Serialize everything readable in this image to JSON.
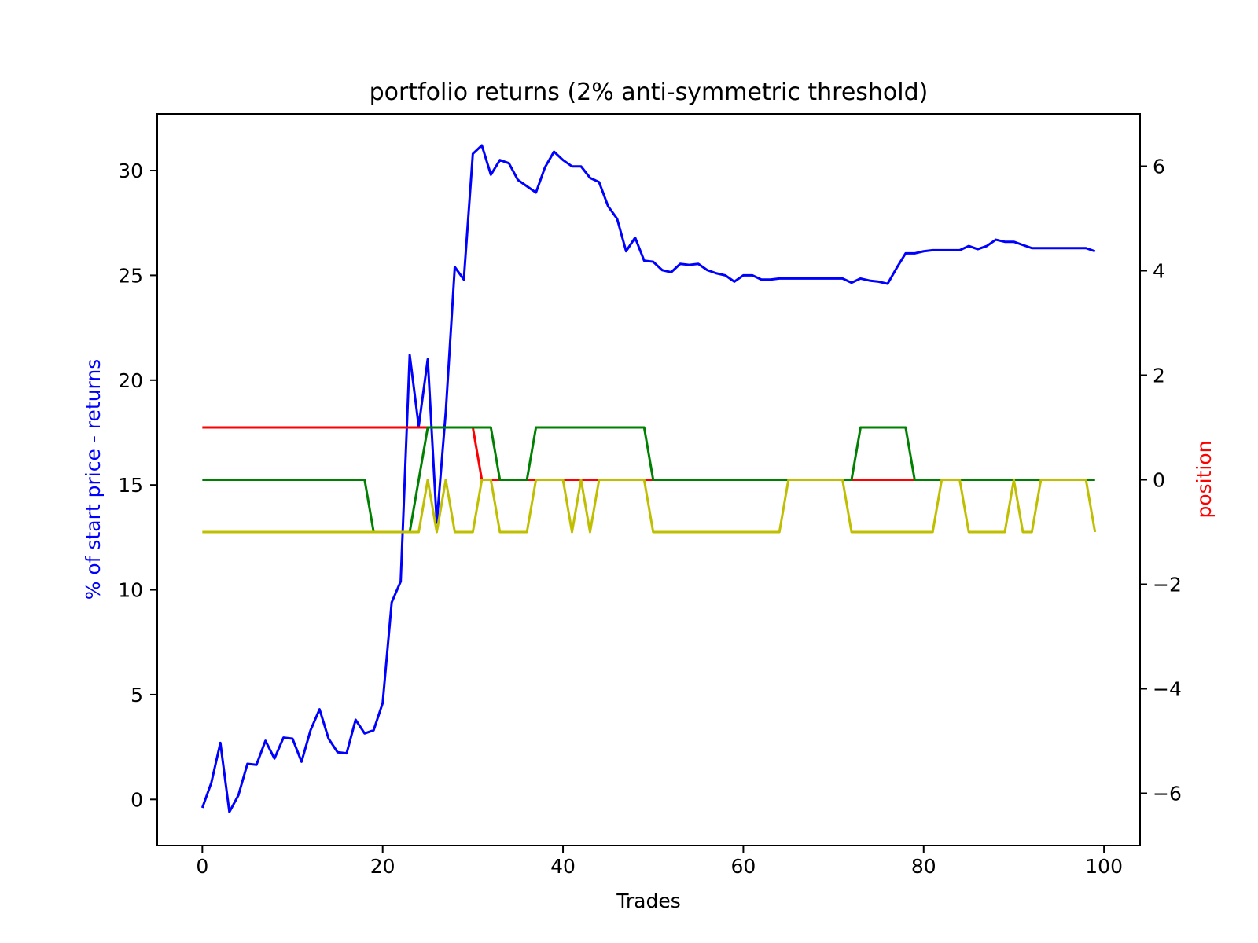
{
  "chart_data": {
    "type": "line",
    "title": "portfolio returns (2% anti-symmetric threshold)",
    "xlabel": "Trades",
    "ylabel_left": "% of start price - returns",
    "ylabel_right": "position",
    "ylabel_left_color": "#0000ff",
    "ylabel_right_color": "#ff0000",
    "xlim": [
      -5,
      104
    ],
    "ylim_left": [
      -2.2,
      32.7
    ],
    "ylim_right": [
      -7,
      7
    ],
    "x_ticks": [
      0,
      20,
      40,
      60,
      80,
      100
    ],
    "x_tick_labels": [
      "0",
      "20",
      "40",
      "60",
      "80",
      "100"
    ],
    "y_left_ticks": [
      0,
      5,
      10,
      15,
      20,
      25,
      30
    ],
    "y_left_tick_labels": [
      "0",
      "5",
      "10",
      "15",
      "20",
      "25",
      "30"
    ],
    "y_right_ticks": [
      -6,
      -4,
      -2,
      0,
      2,
      4,
      6
    ],
    "y_right_tick_labels": [
      "−6",
      "−4",
      "−2",
      "0",
      "2",
      "4",
      "6"
    ],
    "grid": false,
    "legend": "none",
    "series": [
      {
        "axis": "left",
        "color": "#0000ff",
        "values": [
          -0.4,
          0.8,
          2.7,
          -0.6,
          0.2,
          1.7,
          1.65,
          2.8,
          1.95,
          2.95,
          2.9,
          1.8,
          3.3,
          4.3,
          2.9,
          2.25,
          2.2,
          3.8,
          3.15,
          3.3,
          4.6,
          9.4,
          10.4,
          21.2,
          17.8,
          21.0,
          13.2,
          18.5,
          25.4,
          24.8,
          30.8,
          31.2,
          29.8,
          30.5,
          30.35,
          29.55,
          29.25,
          28.95,
          30.15,
          30.9,
          30.5,
          30.2,
          30.2,
          29.65,
          29.45,
          28.3,
          27.7,
          26.15,
          26.8,
          25.7,
          25.65,
          25.25,
          25.15,
          25.55,
          25.5,
          25.55,
          25.25,
          25.1,
          25.0,
          24.7,
          25.0,
          25.0,
          24.8,
          24.8,
          24.85,
          24.85,
          24.85,
          24.85,
          24.85,
          24.85,
          24.85,
          24.85,
          24.65,
          24.85,
          24.75,
          24.7,
          24.6,
          25.35,
          26.05,
          26.05,
          26.15,
          26.2,
          26.2,
          26.2,
          26.2,
          26.4,
          26.25,
          26.4,
          26.7,
          26.6,
          26.6,
          26.45,
          26.3,
          26.3,
          26.3,
          26.3,
          26.3,
          26.3,
          26.3,
          26.15
        ]
      },
      {
        "axis": "right",
        "color": "#ff0000",
        "values": [
          1,
          1,
          1,
          1,
          1,
          1,
          1,
          1,
          1,
          1,
          1,
          1,
          1,
          1,
          1,
          1,
          1,
          1,
          1,
          1,
          1,
          1,
          1,
          1,
          1,
          1,
          1,
          1,
          1,
          1,
          1,
          0,
          0,
          0,
          0,
          0,
          0,
          0,
          0,
          0,
          0,
          0,
          0,
          0,
          0,
          0,
          0,
          0,
          0,
          0,
          0,
          0,
          0,
          0,
          0,
          0,
          0,
          0,
          0,
          0,
          0,
          0,
          0,
          0,
          0,
          0,
          0,
          0,
          0,
          0,
          0,
          0,
          0,
          0,
          0,
          0,
          0,
          0,
          0,
          0,
          0,
          0,
          0,
          0,
          0,
          0,
          0,
          0,
          0,
          0,
          0,
          0,
          0,
          0,
          0,
          0,
          0,
          0,
          0,
          0
        ]
      },
      {
        "axis": "right",
        "color": "#008000",
        "values": [
          0,
          0,
          0,
          0,
          0,
          0,
          0,
          0,
          0,
          0,
          0,
          0,
          0,
          0,
          0,
          0,
          0,
          0,
          0,
          -1,
          -1,
          -1,
          -1,
          -1,
          0,
          1,
          1,
          1,
          1,
          1,
          1,
          1,
          1,
          0,
          0,
          0,
          0,
          1,
          1,
          1,
          1,
          1,
          1,
          1,
          1,
          1,
          1,
          1,
          1,
          1,
          0,
          0,
          0,
          0,
          0,
          0,
          0,
          0,
          0,
          0,
          0,
          0,
          0,
          0,
          0,
          0,
          0,
          0,
          0,
          0,
          0,
          0,
          0,
          1,
          1,
          1,
          1,
          1,
          1,
          0,
          0,
          0,
          0,
          0,
          0,
          0,
          0,
          0,
          0,
          0,
          0,
          0,
          0,
          0,
          0,
          0,
          0,
          0,
          0,
          0
        ]
      },
      {
        "axis": "right",
        "color": "#bfbf00",
        "values": [
          -1,
          -1,
          -1,
          -1,
          -1,
          -1,
          -1,
          -1,
          -1,
          -1,
          -1,
          -1,
          -1,
          -1,
          -1,
          -1,
          -1,
          -1,
          -1,
          -1,
          -1,
          -1,
          -1,
          -1,
          -1,
          0,
          -1,
          0,
          -1,
          -1,
          -1,
          0,
          0,
          -1,
          -1,
          -1,
          -1,
          0,
          0,
          0,
          0,
          -1,
          0,
          -1,
          0,
          0,
          0,
          0,
          0,
          0,
          -1,
          -1,
          -1,
          -1,
          -1,
          -1,
          -1,
          -1,
          -1,
          -1,
          -1,
          -1,
          -1,
          -1,
          -1,
          0,
          0,
          0,
          0,
          0,
          0,
          0,
          -1,
          -1,
          -1,
          -1,
          -1,
          -1,
          -1,
          -1,
          -1,
          -1,
          0,
          0,
          0,
          -1,
          -1,
          -1,
          -1,
          -1,
          0,
          -1,
          -1,
          0,
          0,
          0,
          0,
          0,
          0,
          -1
        ]
      }
    ]
  }
}
